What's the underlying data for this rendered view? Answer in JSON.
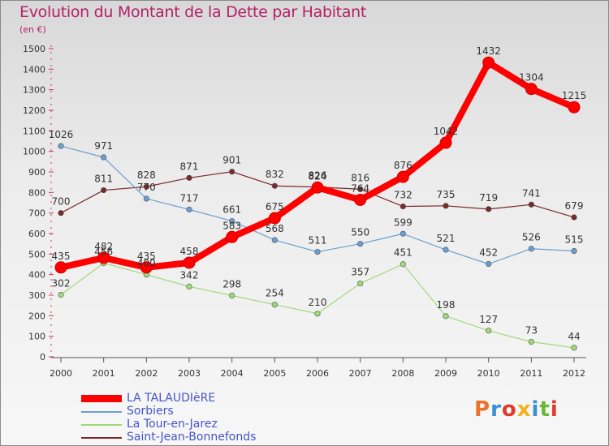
{
  "header": {
    "title": "Evolution du Montant de la Dette par Habitant",
    "subtitle": "(en €)"
  },
  "logo": {
    "text": "Proxiti",
    "colors": [
      "#e8742a",
      "#3a8fd6",
      "#e23a2a",
      "#f2b21b",
      "#3a8fd6",
      "#6bb83a",
      "#e23a2a"
    ]
  },
  "chart_data": {
    "type": "line",
    "title": "Evolution du Montant de la Dette par Habitant",
    "subtitle": "(en €)",
    "xlabel": "",
    "ylabel": "",
    "x": [
      "2000",
      "2001",
      "2002",
      "2003",
      "2004",
      "2005",
      "2006",
      "2007",
      "2008",
      "2009",
      "2010",
      "2011",
      "2012"
    ],
    "ylim": [
      0,
      1500
    ],
    "yticks": [
      "0",
      "100",
      "200",
      "300",
      "400",
      "500",
      "600",
      "700",
      "800",
      "900",
      "1000",
      "1100",
      "1200",
      "1300",
      "1400",
      "1500"
    ],
    "grid": false,
    "legend_position": "bottom-left",
    "series": [
      {
        "name": "LA TALAUDIèRE",
        "color": "#ff0000",
        "width": 8,
        "values": [
          435,
          482,
          435,
          458,
          583,
          675,
          824,
          764,
          876,
          1042,
          1432,
          1304,
          1215
        ],
        "labels": [
          "435",
          "482",
          "435",
          "458",
          "583",
          "675",
          "824",
          "764",
          "876",
          "1042",
          "1432",
          "1304",
          "1215"
        ]
      },
      {
        "name": "Sorbiers",
        "color": "#6a9fd0",
        "width": 1.2,
        "values": [
          1026,
          971,
          770,
          717,
          661,
          568,
          511,
          550,
          599,
          521,
          452,
          526,
          515
        ],
        "labels": [
          "1026",
          "971",
          "770",
          "717",
          "661",
          "568",
          "511",
          "550",
          "599",
          "521",
          "452",
          "526",
          "515"
        ]
      },
      {
        "name": "La Tour-en-Jarez",
        "color": "#9fd97a",
        "width": 1.2,
        "values": [
          302,
          456,
          400,
          342,
          298,
          254,
          210,
          357,
          451,
          198,
          127,
          73,
          44
        ],
        "labels": [
          "302",
          "456",
          "400",
          "342",
          "298",
          "254",
          "210",
          "357",
          "451",
          "198",
          "127",
          "73",
          "44"
        ]
      },
      {
        "name": "Saint-Jean-Bonnefonds",
        "color": "#7a2a2a",
        "width": 1.2,
        "values": [
          700,
          811,
          828,
          871,
          901,
          832,
          826,
          816,
          732,
          735,
          719,
          741,
          679
        ],
        "labels": [
          "700",
          "811",
          "828",
          "871",
          "901",
          "832",
          "826",
          "816",
          "732",
          "735",
          "719",
          "741",
          "679"
        ]
      }
    ]
  }
}
